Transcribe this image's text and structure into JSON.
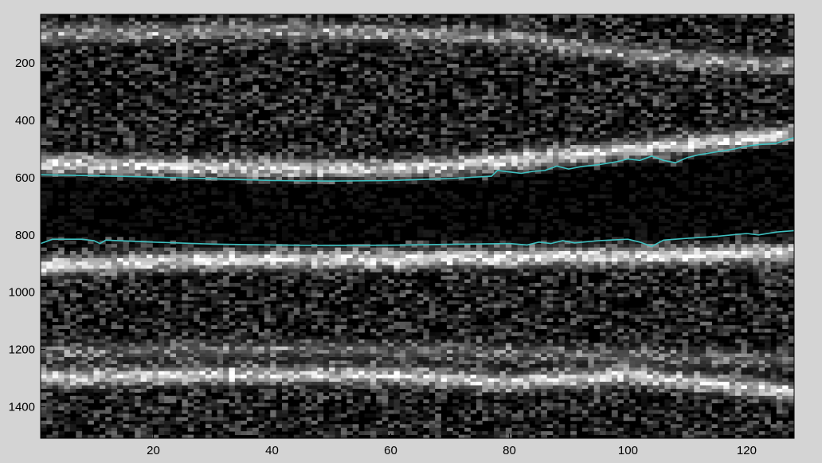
{
  "chart_data": {
    "type": "heatmap",
    "colormap": "grayscale",
    "background_color": "#d4d4d4",
    "trace_color": "#3fbfbf",
    "x_ticks": [
      20,
      40,
      60,
      80,
      100,
      120
    ],
    "y_ticks": [
      200,
      400,
      600,
      800,
      1000,
      1200,
      1400
    ],
    "xlim": [
      1,
      128
    ],
    "ylim": [
      1510,
      30
    ],
    "y_reversed": true,
    "grid": false,
    "bright_bands": [
      {
        "points": [
          [
            1,
            100
          ],
          [
            40,
            85
          ],
          [
            80,
            110
          ],
          [
            100,
            170
          ],
          [
            128,
            210
          ]
        ],
        "intensity": 0.55
      },
      {
        "points": [
          [
            1,
            550
          ],
          [
            30,
            565
          ],
          [
            60,
            570
          ],
          [
            80,
            540
          ],
          [
            100,
            500
          ],
          [
            128,
            450
          ]
        ],
        "intensity": 0.9
      },
      {
        "points": [
          [
            1,
            910
          ],
          [
            30,
            885
          ],
          [
            60,
            885
          ],
          [
            90,
            875
          ],
          [
            128,
            865
          ]
        ],
        "intensity": 0.95
      },
      {
        "points": [
          [
            1,
            1300
          ],
          [
            30,
            1290
          ],
          [
            60,
            1290
          ],
          [
            80,
            1315
          ],
          [
            100,
            1290
          ],
          [
            128,
            1350
          ]
        ],
        "intensity": 0.85
      },
      {
        "points": [
          [
            1,
            1210
          ],
          [
            50,
            1200
          ],
          [
            100,
            1220
          ],
          [
            128,
            1240
          ]
        ],
        "intensity": 0.35
      }
    ],
    "series": [
      {
        "x": [
          1,
          10,
          20,
          30,
          40,
          50,
          60,
          70,
          77,
          78,
          80,
          82,
          84,
          86,
          88,
          90,
          92,
          95,
          98,
          100,
          102,
          104,
          106,
          108,
          110,
          112,
          115,
          118,
          120,
          122,
          125,
          128
        ],
        "y": [
          590,
          593,
          598,
          604,
          610,
          612,
          610,
          603,
          595,
          575,
          580,
          585,
          578,
          575,
          560,
          570,
          562,
          555,
          545,
          535,
          540,
          525,
          540,
          548,
          530,
          520,
          510,
          500,
          490,
          485,
          480,
          460
        ]
      },
      {
        "x": [
          1,
          3,
          8,
          10,
          11,
          12,
          20,
          30,
          40,
          50,
          60,
          70,
          80,
          83,
          85,
          87,
          89,
          91,
          95,
          100,
          102,
          104,
          106,
          110,
          115,
          120,
          122,
          125,
          128
        ],
        "y": [
          830,
          815,
          815,
          820,
          830,
          818,
          825,
          832,
          835,
          837,
          836,
          833,
          830,
          835,
          825,
          830,
          820,
          828,
          820,
          815,
          825,
          840,
          818,
          812,
          805,
          795,
          800,
          790,
          785
        ]
      }
    ]
  }
}
